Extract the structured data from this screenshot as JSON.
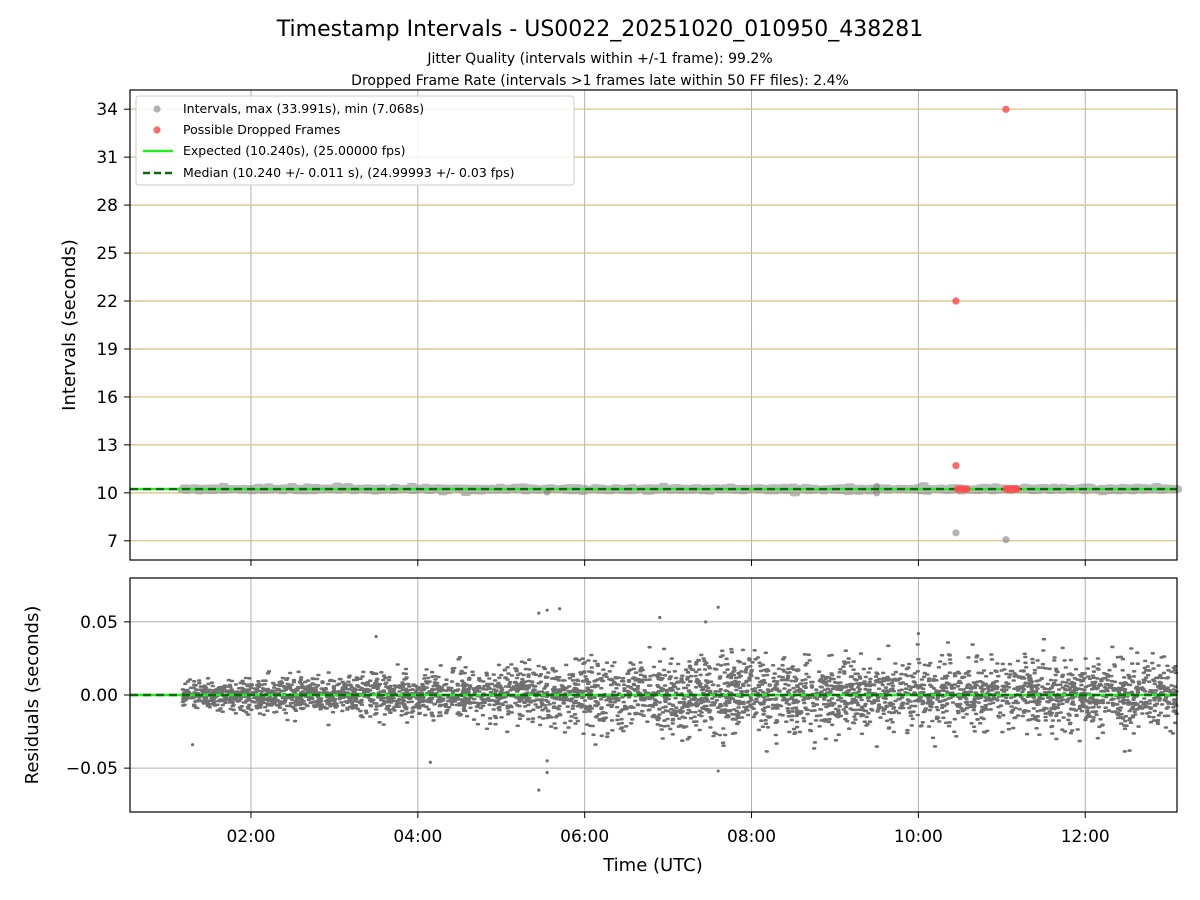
{
  "chart_data": [
    {
      "type": "scatter",
      "panel": "intervals",
      "title": "Timestamp Intervals - US0022_20251020_010950_438281",
      "subtitle_lines": [
        "Jitter Quality (intervals within +/-1 frame): 99.2%",
        "Dropped Frame Rate (intervals >1 frames late within 50 FF files): 2.4%"
      ],
      "xlabel": "",
      "ylabel": "Intervals (seconds)",
      "xlim_hours": [
        0.55,
        13.1
      ],
      "ylim": [
        5.8,
        35.2
      ],
      "yticks": [
        7,
        10,
        13,
        16,
        19,
        22,
        25,
        28,
        31,
        34
      ],
      "ytick_labels": [
        "7",
        "10",
        "13",
        "16",
        "19",
        "22",
        "25",
        "28",
        "31",
        "34"
      ],
      "grid": true,
      "legend_position": "top-left",
      "legend": [
        "Intervals, max (33.991s), min (7.068s)",
        "Possible Dropped Frames",
        "Expected (10.240s), (25.00000 fps)",
        "Median (10.240 +/- 0.011 s), (24.99993 +/- 0.03 fps)"
      ],
      "series": [
        {
          "name": "Intervals, max (33.991s), min (7.068s)",
          "color": "#808080",
          "x_start_hours": 1.18,
          "x_end_hours": 13.1,
          "baseline": 10.24,
          "outliers": [
            {
              "x": 5.55,
              "y": 10.05
            },
            {
              "x": 9.5,
              "y": 10.0
            },
            {
              "x": 9.5,
              "y": 10.4
            },
            {
              "x": 10.45,
              "y": 7.5
            },
            {
              "x": 11.05,
              "y": 7.068
            }
          ]
        },
        {
          "name": "Possible Dropped Frames",
          "color": "#ff4d4d",
          "points": [
            {
              "x": 11.05,
              "y": 33.991
            },
            {
              "x": 10.45,
              "y": 22.0
            },
            {
              "x": 10.45,
              "y": 11.7
            },
            {
              "x": 10.47,
              "y": 10.24
            },
            {
              "x": 10.5,
              "y": 10.24
            },
            {
              "x": 10.53,
              "y": 10.24
            },
            {
              "x": 10.56,
              "y": 10.24
            },
            {
              "x": 10.58,
              "y": 10.24
            },
            {
              "x": 11.05,
              "y": 10.24
            },
            {
              "x": 11.08,
              "y": 10.24
            },
            {
              "x": 11.1,
              "y": 10.24
            },
            {
              "x": 11.12,
              "y": 10.24
            },
            {
              "x": 11.15,
              "y": 10.24
            },
            {
              "x": 11.18,
              "y": 10.24
            }
          ]
        },
        {
          "name": "Expected (10.240s), (25.00000 fps)",
          "color": "#22ee22",
          "y": 10.24
        },
        {
          "name": "Median (10.240 +/- 0.011 s), (24.99993 +/- 0.03 fps)",
          "color": "#0a6b0a",
          "y": 10.24
        }
      ]
    },
    {
      "type": "scatter",
      "panel": "residuals",
      "xlabel": "Time (UTC)",
      "ylabel": "Residuals (seconds)",
      "xlim_hours": [
        0.55,
        13.1
      ],
      "ylim": [
        -0.08,
        0.08
      ],
      "yticks": [
        -0.05,
        0.0,
        0.05
      ],
      "ytick_labels": [
        "−0.05",
        "0.00",
        "0.05"
      ],
      "xticks_hours": [
        2,
        4,
        6,
        8,
        10,
        12
      ],
      "xtick_labels": [
        "02:00",
        "04:00",
        "06:00",
        "08:00",
        "10:00",
        "12:00"
      ],
      "grid": true,
      "series": [
        {
          "name": "Residuals",
          "color": "#707070",
          "x_start_hours": 1.18,
          "x_end_hours": 13.1,
          "spread_profile": [
            {
              "x": 1.2,
              "sd": 0.0045
            },
            {
              "x": 3.0,
              "sd": 0.0065
            },
            {
              "x": 5.0,
              "sd": 0.0085
            },
            {
              "x": 6.0,
              "sd": 0.012
            },
            {
              "x": 7.5,
              "sd": 0.0135
            },
            {
              "x": 9.0,
              "sd": 0.0125
            },
            {
              "x": 13.1,
              "sd": 0.0115
            }
          ],
          "extreme_points": [
            {
              "x": 5.45,
              "y": 0.056
            },
            {
              "x": 5.55,
              "y": 0.058
            },
            {
              "x": 5.7,
              "y": 0.059
            },
            {
              "x": 6.9,
              "y": 0.053
            },
            {
              "x": 7.6,
              "y": 0.06
            },
            {
              "x": 7.45,
              "y": 0.05
            },
            {
              "x": 5.45,
              "y": -0.065
            },
            {
              "x": 5.55,
              "y": -0.053
            },
            {
              "x": 5.55,
              "y": -0.045
            },
            {
              "x": 4.15,
              "y": -0.046
            },
            {
              "x": 7.6,
              "y": -0.052
            },
            {
              "x": 1.3,
              "y": -0.034
            },
            {
              "x": 3.5,
              "y": 0.04
            },
            {
              "x": 10.0,
              "y": 0.042
            }
          ]
        },
        {
          "name": "Expected",
          "color": "#22ee22",
          "y": 0.0
        },
        {
          "name": "Median",
          "color": "#0a6b0a",
          "y": 0.0
        }
      ]
    }
  ]
}
